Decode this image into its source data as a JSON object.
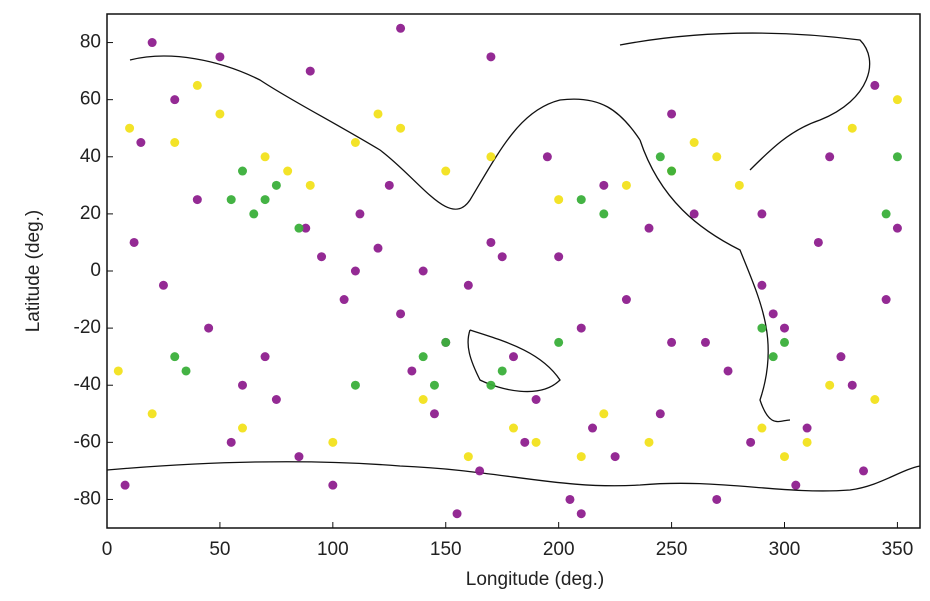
{
  "chart_data": {
    "type": "scatter",
    "xlabel": "Longitude (deg.)",
    "ylabel": "Latitude (deg.)",
    "xlim": [
      0,
      360
    ],
    "ylim": [
      -90,
      90
    ],
    "xticks": [
      0,
      50,
      100,
      150,
      200,
      250,
      300,
      350
    ],
    "yticks": [
      -80,
      -60,
      -40,
      -20,
      0,
      20,
      40,
      60,
      80
    ],
    "grid": false,
    "series": [
      {
        "color": "#8e1f8e",
        "x": [
          12,
          25,
          40,
          55,
          70,
          88,
          95,
          105,
          112,
          120,
          130,
          140,
          150,
          160,
          170,
          180,
          190,
          200,
          210,
          220,
          230,
          245,
          260,
          275,
          290,
          300,
          310,
          320,
          335,
          350,
          8,
          30,
          60,
          85,
          100,
          125,
          145,
          165,
          185,
          205,
          225,
          250,
          270,
          285,
          305,
          325,
          345,
          15,
          45,
          75,
          110,
          135,
          155,
          175,
          195,
          215,
          240,
          265,
          295,
          315,
          340,
          20,
          50,
          90,
          130,
          170,
          210,
          250,
          290,
          330
        ],
        "values": [
          10,
          -5,
          25,
          -60,
          -30,
          15,
          5,
          -10,
          20,
          8,
          -15,
          0,
          -25,
          -5,
          10,
          -30,
          -45,
          5,
          -20,
          30,
          -10,
          -50,
          20,
          -35,
          -5,
          -20,
          -55,
          40,
          -70,
          15,
          -75,
          60,
          -40,
          -65,
          -75,
          30,
          -50,
          -70,
          -60,
          -80,
          -65,
          55,
          -80,
          -60,
          -75,
          -30,
          -10,
          45,
          -20,
          -45,
          0,
          -35,
          -85,
          5,
          40,
          -55,
          15,
          -25,
          -15,
          10,
          65,
          80,
          75,
          70,
          85,
          75,
          -85,
          -25,
          20,
          -40
        ]
      },
      {
        "color": "#f2e21c",
        "x": [
          10,
          30,
          50,
          70,
          90,
          110,
          130,
          150,
          170,
          190,
          210,
          230,
          250,
          270,
          290,
          310,
          330,
          350,
          20,
          60,
          100,
          140,
          180,
          220,
          260,
          300,
          340,
          40,
          80,
          120,
          160,
          200,
          240,
          280,
          320,
          5
        ],
        "values": [
          50,
          45,
          55,
          40,
          30,
          45,
          50,
          35,
          40,
          -60,
          -65,
          30,
          35,
          40,
          -55,
          -60,
          50,
          60,
          -50,
          -55,
          -60,
          -45,
          -55,
          -50,
          45,
          -65,
          -45,
          65,
          35,
          55,
          -65,
          25,
          -60,
          30,
          -40,
          -35
        ]
      },
      {
        "color": "#3aaf3a",
        "x": [
          55,
          65,
          75,
          85,
          30,
          35,
          140,
          145,
          150,
          170,
          175,
          210,
          220,
          245,
          250,
          290,
          295,
          300,
          350,
          345,
          60,
          70,
          200,
          110
        ],
        "values": [
          25,
          20,
          30,
          15,
          -30,
          -35,
          -30,
          -40,
          -25,
          -40,
          -35,
          25,
          20,
          40,
          35,
          -20,
          -30,
          -25,
          40,
          20,
          35,
          25,
          -25,
          -40
        ]
      }
    ]
  }
}
